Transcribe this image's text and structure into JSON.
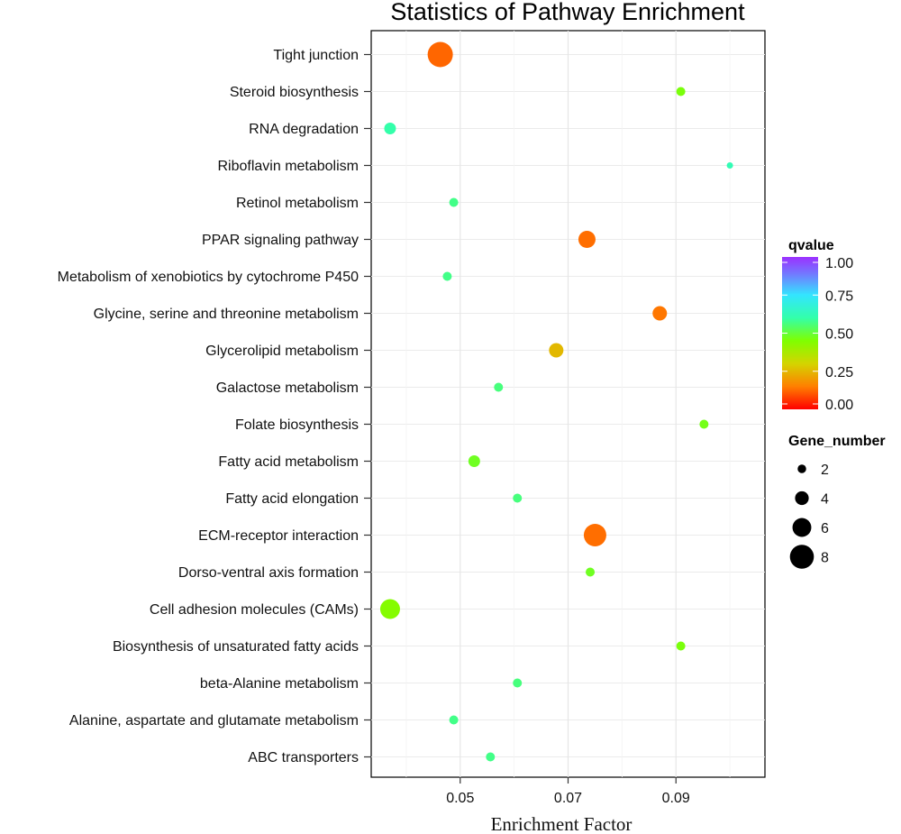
{
  "chart_data": {
    "type": "scatter",
    "title": "Statistics of Pathway Enrichment",
    "xlabel": "Enrichment Factor",
    "ylabel": "",
    "xlim": [
      0.0335,
      0.1065
    ],
    "xticks": [
      0.05,
      0.07,
      0.09
    ],
    "xtick_labels": [
      "0.05",
      "0.07",
      "0.09"
    ],
    "grid": true,
    "categories": [
      "Tight junction",
      "Steroid biosynthesis",
      "RNA degradation",
      "Riboflavin metabolism",
      "Retinol metabolism",
      "PPAR signaling pathway",
      "Metabolism of xenobiotics by cytochrome P450",
      "Glycine, serine and threonine metabolism",
      "Glycerolipid metabolism",
      "Galactose metabolism",
      "Folate biosynthesis",
      "Fatty acid metabolism",
      "Fatty acid elongation",
      "ECM-receptor interaction",
      "Dorso-ventral axis formation",
      "Cell adhesion molecules (CAMs)",
      "Biosynthesis of unsaturated fatty acids",
      "beta-Alanine metabolism",
      "Alanine, aspartate and glutamate metabolism",
      "ABC transporters"
    ],
    "points": [
      {
        "pathway": "Tight junction",
        "enrichment_factor": 0.0463,
        "gene_number": 8,
        "qvalue": 0.12
      },
      {
        "pathway": "Steroid biosynthesis",
        "enrichment_factor": 0.0909,
        "gene_number": 2,
        "qvalue": 0.46
      },
      {
        "pathway": "RNA degradation",
        "enrichment_factor": 0.037,
        "gene_number": 3,
        "qvalue": 0.6
      },
      {
        "pathway": "Riboflavin metabolism",
        "enrichment_factor": 0.1,
        "gene_number": 1,
        "qvalue": 0.62
      },
      {
        "pathway": "Retinol metabolism",
        "enrichment_factor": 0.0488,
        "gene_number": 2,
        "qvalue": 0.57
      },
      {
        "pathway": "PPAR signaling pathway",
        "enrichment_factor": 0.0735,
        "gene_number": 5,
        "qvalue": 0.13
      },
      {
        "pathway": "Metabolism of xenobiotics by cytochrome P450",
        "enrichment_factor": 0.0476,
        "gene_number": 2,
        "qvalue": 0.57
      },
      {
        "pathway": "Glycine, serine and threonine metabolism",
        "enrichment_factor": 0.087,
        "gene_number": 4,
        "qvalue": 0.14
      },
      {
        "pathway": "Glycerolipid metabolism",
        "enrichment_factor": 0.0678,
        "gene_number": 4,
        "qvalue": 0.25
      },
      {
        "pathway": "Galactose metabolism",
        "enrichment_factor": 0.0571,
        "gene_number": 2,
        "qvalue": 0.56
      },
      {
        "pathway": "Folate biosynthesis",
        "enrichment_factor": 0.0952,
        "gene_number": 2,
        "qvalue": 0.47
      },
      {
        "pathway": "Fatty acid metabolism",
        "enrichment_factor": 0.0526,
        "gene_number": 3,
        "qvalue": 0.48
      },
      {
        "pathway": "Fatty acid elongation",
        "enrichment_factor": 0.0606,
        "gene_number": 2,
        "qvalue": 0.56
      },
      {
        "pathway": "ECM-receptor interaction",
        "enrichment_factor": 0.075,
        "gene_number": 7,
        "qvalue": 0.13
      },
      {
        "pathway": "Dorso-ventral axis formation",
        "enrichment_factor": 0.0741,
        "gene_number": 2,
        "qvalue": 0.48
      },
      {
        "pathway": "Cell adhesion molecules (CAMs)",
        "enrichment_factor": 0.037,
        "gene_number": 6,
        "qvalue": 0.44
      },
      {
        "pathway": "Biosynthesis of unsaturated fatty acids",
        "enrichment_factor": 0.0909,
        "gene_number": 2,
        "qvalue": 0.46
      },
      {
        "pathway": "beta-Alanine metabolism",
        "enrichment_factor": 0.0606,
        "gene_number": 2,
        "qvalue": 0.56
      },
      {
        "pathway": "Alanine, aspartate and glutamate metabolism",
        "enrichment_factor": 0.0488,
        "gene_number": 2,
        "qvalue": 0.57
      },
      {
        "pathway": "ABC transporters",
        "enrichment_factor": 0.0556,
        "gene_number": 2,
        "qvalue": 0.57
      }
    ],
    "color_legend": {
      "title": "qvalue",
      "range": [
        0.0,
        1.0
      ],
      "ticks": [
        1.0,
        0.75,
        0.5,
        0.25,
        0.0
      ],
      "tick_labels": [
        "1.00",
        "0.75",
        "0.50",
        "0.25",
        "0.00"
      ],
      "stops": [
        {
          "q": 0.0,
          "color": "#ff0000"
        },
        {
          "q": 0.15,
          "color": "#ff7f00"
        },
        {
          "q": 0.3,
          "color": "#d4d400"
        },
        {
          "q": 0.45,
          "color": "#7fff00"
        },
        {
          "q": 0.6,
          "color": "#33ffaa"
        },
        {
          "q": 0.75,
          "color": "#33e5ff"
        },
        {
          "q": 0.88,
          "color": "#6f7fff"
        },
        {
          "q": 1.0,
          "color": "#9b30ff"
        }
      ]
    },
    "size_legend": {
      "title": "Gene_number",
      "values": [
        2,
        4,
        6,
        8
      ],
      "labels": [
        "2",
        "4",
        "6",
        "8"
      ],
      "color": "#000000"
    },
    "legend_position": "right"
  }
}
